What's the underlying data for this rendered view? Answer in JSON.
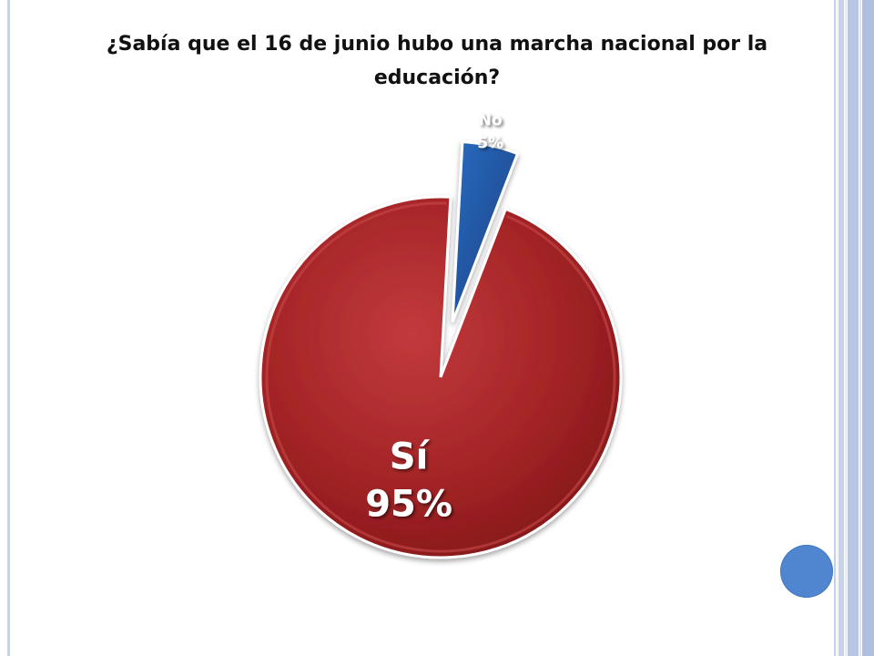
{
  "slide": {
    "title": "¿Sabía que el 16 de junio hubo una marcha nacional por la educación?",
    "colors": {
      "background": "#ffffff",
      "accent_circle": "#4f86cf",
      "stripe_light": "#c5d0e8",
      "stripe_medium": "#aebfe0"
    }
  },
  "chart_data": {
    "type": "pie",
    "title": "¿Sabía que el 16 de junio hubo una marcha nacional por la educación?",
    "slices": [
      {
        "category": "No",
        "value": 5,
        "label": "5%",
        "color": "#1f55a3",
        "exploded": true
      },
      {
        "category": "Sí",
        "value": 95,
        "label": "95%",
        "color": "#9e1c1f",
        "exploded": false
      }
    ],
    "legend": "none"
  }
}
